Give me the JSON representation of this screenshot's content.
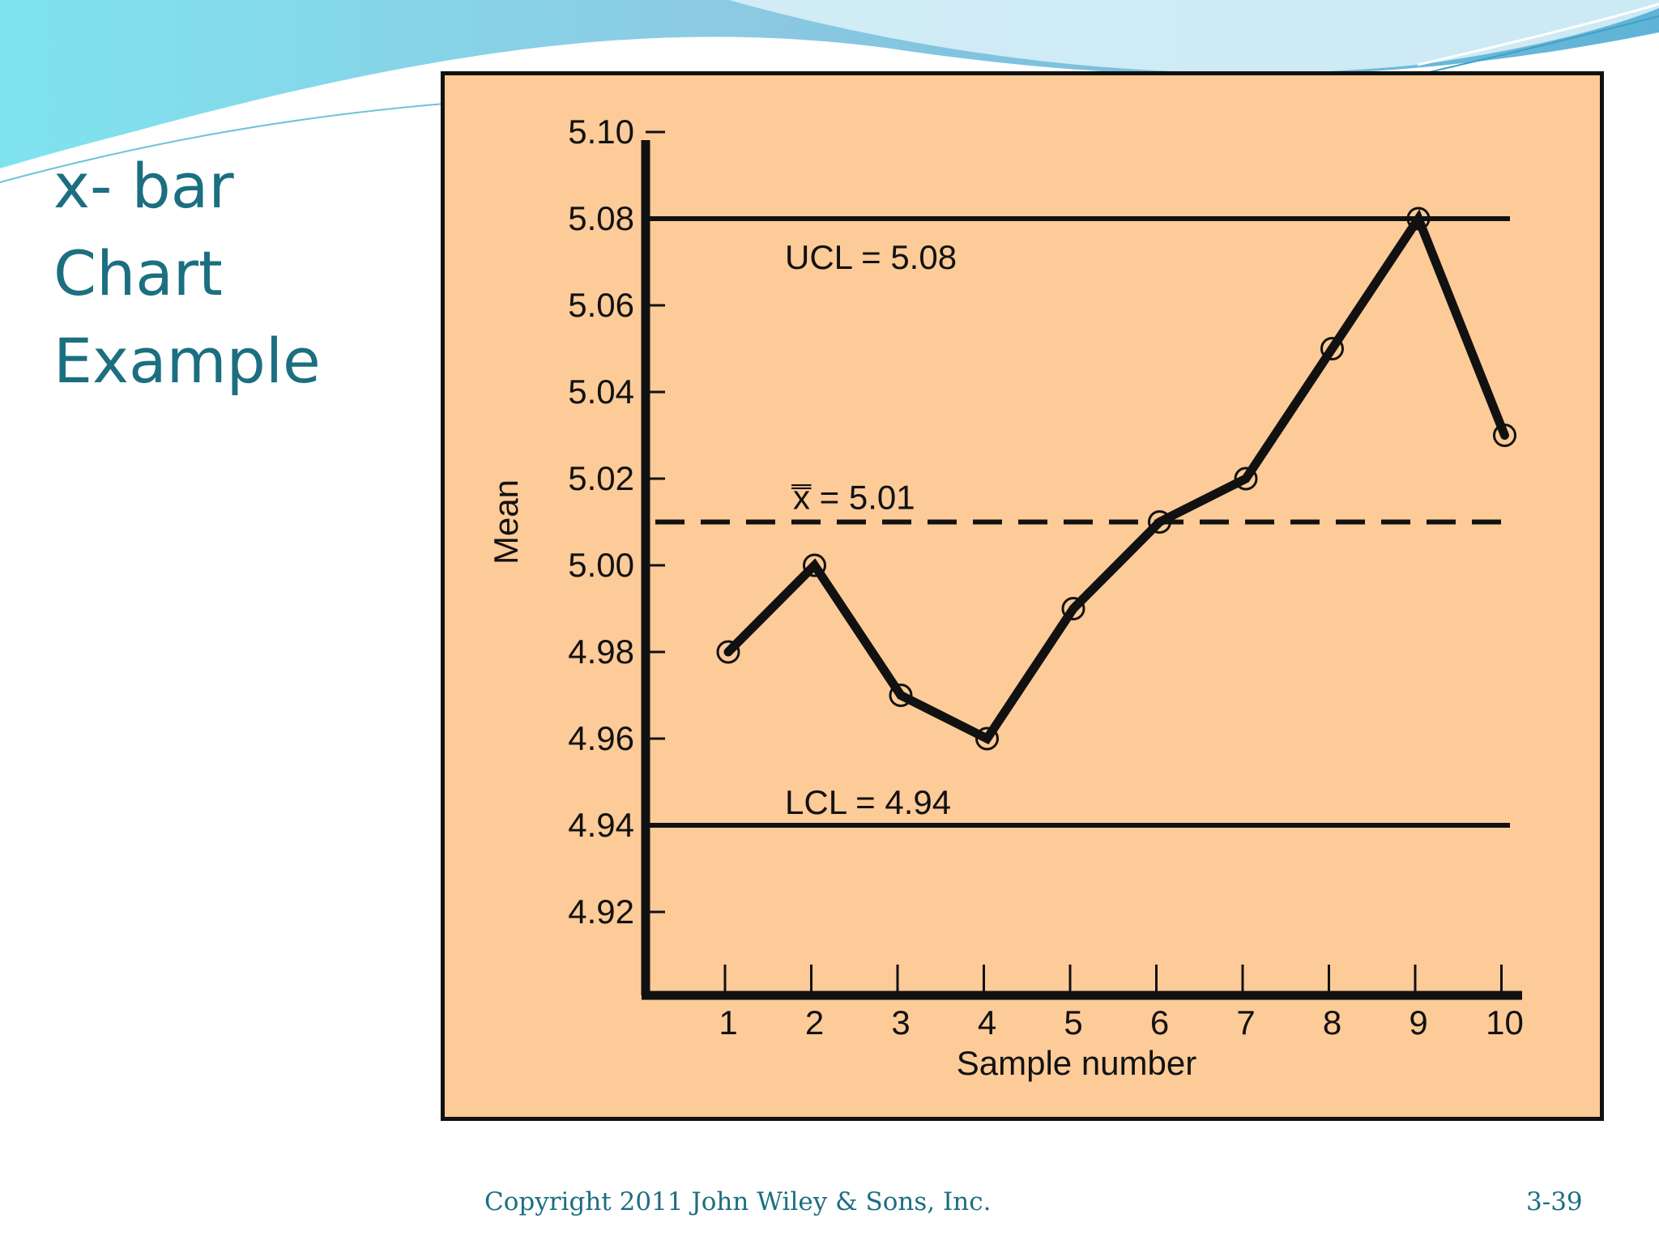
{
  "slide": {
    "title_lines": [
      "x- bar",
      "Chart",
      "Example"
    ],
    "copyright": "Copyright 2011 John Wiley & Sons, Inc.",
    "page_number": "3-39",
    "colors": {
      "title": "#1b6f80",
      "chart_background": "#fdcb98",
      "wave_light": "#8fd8e8",
      "wave_dark": "#5bb6d3"
    }
  },
  "chart_data": {
    "type": "line",
    "title": "",
    "xlabel": "Sample number",
    "ylabel": "Mean",
    "x": [
      1,
      2,
      3,
      4,
      5,
      6,
      7,
      8,
      9,
      10
    ],
    "x_tick_labels": [
      "1",
      "2",
      "3",
      "4",
      "5",
      "6",
      "7",
      "8",
      "9",
      "10"
    ],
    "y_tick_labels": [
      "5.10",
      "5.08",
      "5.06",
      "5.04",
      "5.02",
      "5.00",
      "4.98",
      "4.96",
      "4.94",
      "4.92"
    ],
    "y_ticks": [
      5.1,
      5.08,
      5.06,
      5.04,
      5.02,
      5.0,
      4.98,
      4.96,
      4.94,
      4.92
    ],
    "ylim": [
      4.9,
      5.1
    ],
    "series": [
      {
        "values": [
          4.98,
          5.0,
          4.97,
          4.96,
          4.99,
          5.01,
          5.02,
          5.05,
          5.08,
          5.03
        ]
      }
    ],
    "reference_lines": [
      {
        "id": "ucl",
        "value": 5.08,
        "style": "solid",
        "label": "UCL = 5.08"
      },
      {
        "id": "center",
        "value": 5.01,
        "style": "dashed",
        "label": "x̿ = 5.01"
      },
      {
        "id": "lcl",
        "value": 4.94,
        "style": "solid",
        "label": "LCL = 4.94"
      }
    ],
    "grid": false,
    "legend": "none",
    "markers": "open-circle"
  }
}
